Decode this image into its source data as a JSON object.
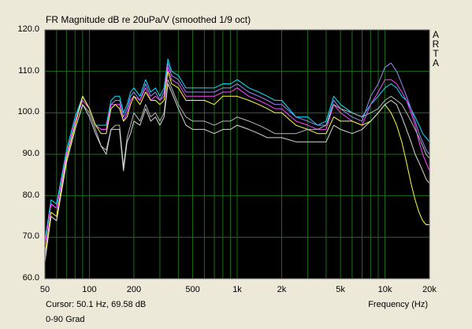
{
  "chart_data": {
    "type": "line",
    "title": "FR Magnitude dB re 20uPa/V (smoothed 1/9 oct)",
    "xlabel": "Frequency (Hz)",
    "ylabel": "",
    "xscale": "log",
    "xlim": [
      50,
      20000
    ],
    "ylim": [
      60,
      120
    ],
    "x_ticks": [
      {
        "value": 50,
        "label": "50"
      },
      {
        "value": 100,
        "label": "100"
      },
      {
        "value": 200,
        "label": "200"
      },
      {
        "value": 500,
        "label": "500"
      },
      {
        "value": 1000,
        "label": "1k"
      },
      {
        "value": 2000,
        "label": "2k"
      },
      {
        "value": 5000,
        "label": "5k"
      },
      {
        "value": 10000,
        "label": "10k"
      },
      {
        "value": 20000,
        "label": "20k"
      }
    ],
    "y_ticks": [
      "60.0",
      "70.0",
      "80.0",
      "90.0",
      "100.0",
      "110.0",
      "120.0"
    ],
    "grid": true,
    "background": "#000000",
    "grid_color": "#1e6b1e",
    "x": [
      50,
      55,
      60,
      70,
      80,
      90,
      100,
      110,
      120,
      130,
      140,
      150,
      160,
      170,
      180,
      190,
      200,
      220,
      240,
      260,
      280,
      300,
      320,
      340,
      360,
      400,
      450,
      500,
      600,
      700,
      800,
      900,
      1000,
      1200,
      1400,
      1600,
      1800,
      2000,
      2500,
      3000,
      3500,
      4000,
      4500,
      5000,
      6000,
      7000,
      8000,
      9000,
      10000,
      11000,
      12000,
      13000,
      14000,
      15000,
      16000,
      17000,
      18000,
      19000,
      20000
    ],
    "series": [
      {
        "color": "#00e5ff",
        "values": [
          69,
          79,
          78,
          91,
          99,
          104,
          101,
          97,
          97,
          97,
          103,
          104,
          104,
          100,
          102,
          105,
          106,
          104,
          108,
          105,
          106,
          104,
          106,
          113,
          110,
          109,
          106,
          106,
          106,
          106,
          107,
          107,
          108,
          106,
          105,
          104,
          103,
          103,
          99,
          99,
          97,
          98,
          104,
          102,
          100,
          99,
          102,
          104,
          106,
          107,
          106,
          104,
          103,
          101,
          99,
          97,
          95,
          94,
          93
        ]
      },
      {
        "color": "#9a8cff",
        "values": [
          68,
          78,
          77,
          90,
          98,
          104,
          101,
          97,
          96,
          96,
          102,
          103,
          103,
          99,
          101,
          104,
          105,
          103,
          107,
          104,
          105,
          103,
          105,
          112,
          109,
          108,
          105,
          105,
          105,
          105,
          106,
          106,
          107,
          105,
          104,
          103,
          102,
          102,
          99,
          98,
          97,
          97,
          103,
          101,
          99,
          98,
          104,
          107,
          111,
          112,
          110,
          107,
          104,
          101,
          98,
          95,
          93,
          91,
          90
        ]
      },
      {
        "color": "#ff44ff",
        "values": [
          68,
          78,
          77,
          90,
          98,
          103,
          101,
          97,
          96,
          96,
          102,
          102,
          102,
          98,
          100,
          103,
          104,
          103,
          106,
          103,
          104,
          103,
          104,
          111,
          108,
          107,
          104,
          104,
          104,
          104,
          105,
          105,
          106,
          104,
          103,
          102,
          101,
          101,
          98,
          97,
          96,
          96,
          102,
          100,
          98,
          97,
          102,
          105,
          108,
          108,
          107,
          105,
          103,
          100,
          97,
          93,
          90,
          88,
          86
        ]
      },
      {
        "color": "#ffff40",
        "values": [
          66,
          76,
          75,
          89,
          97,
          104,
          101,
          97,
          95,
          95,
          101,
          102,
          101,
          98,
          99,
          102,
          104,
          102,
          105,
          103,
          103,
          102,
          103,
          110,
          107,
          106,
          103,
          103,
          103,
          102,
          104,
          104,
          104,
          103,
          102,
          101,
          100,
          100,
          97,
          96,
          95,
          95,
          99,
          98,
          98,
          97,
          98,
          100,
          102,
          100,
          97,
          93,
          88,
          83,
          79,
          76,
          74,
          73,
          73
        ]
      },
      {
        "color": "#b8b8b8",
        "values": [
          65,
          75,
          74,
          88,
          96,
          102,
          100,
          96,
          92,
          91,
          96,
          97,
          97,
          87,
          94,
          97,
          100,
          98,
          102,
          99,
          100,
          98,
          100,
          108,
          106,
          102,
          99,
          98,
          98,
          97,
          98,
          98,
          99,
          98,
          97,
          96,
          95,
          95,
          95,
          96,
          96,
          97,
          102,
          101,
          100,
          99,
          100,
          101,
          103,
          104,
          103,
          102,
          100,
          98,
          96,
          94,
          92,
          90,
          89
        ]
      },
      {
        "color": "#d8d8d8",
        "values": [
          64,
          75,
          74,
          88,
          96,
          102,
          99,
          95,
          92,
          90,
          96,
          96,
          96,
          86,
          93,
          95,
          98,
          97,
          101,
          98,
          99,
          97,
          99,
          107,
          105,
          101,
          97,
          96,
          96,
          95,
          96,
          96,
          97,
          96,
          95,
          94,
          94,
          94,
          93,
          93,
          93,
          93,
          97,
          96,
          95,
          96,
          98,
          100,
          102,
          103,
          102,
          99,
          96,
          93,
          90,
          88,
          86,
          84,
          83
        ]
      }
    ]
  },
  "cursor_readout": "Cursor: 50.1 Hz, 69.58 dB",
  "angle_label": "0-90 Grad",
  "brand_letters": [
    "A",
    "R",
    "T",
    "A"
  ]
}
